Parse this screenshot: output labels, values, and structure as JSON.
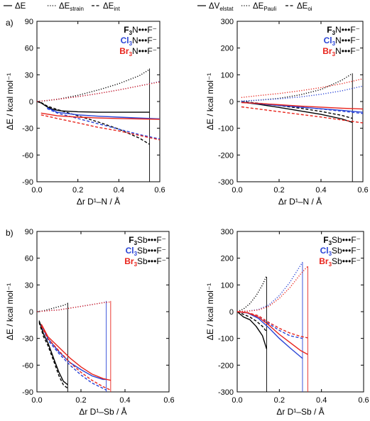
{
  "legend_rows": [
    {
      "items": [
        {
          "symbol": "ΔE",
          "sub": "",
          "dash": "solid"
        },
        {
          "symbol": "ΔE",
          "sub": "strain",
          "dash": "dotted"
        },
        {
          "symbol": "ΔE",
          "sub": "int",
          "dash": "dashed"
        }
      ]
    },
    {
      "items": [
        {
          "symbol": "ΔV",
          "sub": "elstat",
          "dash": "solid"
        },
        {
          "symbol": "ΔE",
          "sub": "Pauli",
          "dash": "dotted"
        },
        {
          "symbol": "ΔE",
          "sub": "oi",
          "dash": "dashed"
        }
      ]
    }
  ],
  "panel_labels": [
    "a)",
    "b)"
  ],
  "colors": {
    "F": "#000000",
    "Cl": "#2a45d6",
    "Br": "#e8231b",
    "axis": "#000000"
  },
  "chart_data": [
    {
      "type": "line",
      "ylabel": "ΔE / kcal mol⁻¹",
      "xlabel": "Δr D¹–N / Å",
      "xlim": [
        0,
        0.6
      ],
      "ylim": [
        -90,
        90
      ],
      "xticks": [
        "0.0",
        "0.2",
        "0.4",
        "0.6"
      ],
      "yticks": [
        "90",
        "60",
        "30",
        "0",
        "-30",
        "-60",
        "-90"
      ],
      "xtick_values": [
        0,
        0.2,
        0.4,
        0.6
      ],
      "ytick_values": [
        90,
        60,
        30,
        0,
        -30,
        -60,
        -90
      ],
      "legend": [
        {
          "prefix": "F",
          "sub": "3",
          "center": "N",
          "suffix": "•••F⁻",
          "color": "F"
        },
        {
          "prefix": "Cl",
          "sub": "3",
          "center": "N",
          "suffix": "•••F⁻",
          "color": "Cl"
        },
        {
          "prefix": "Br",
          "sub": "3",
          "center": "N",
          "suffix": "•••F⁻",
          "color": "Br"
        }
      ],
      "vlines": [
        {
          "x": 0.55,
          "color": "F",
          "y_from": -90,
          "y_to": 37
        }
      ],
      "series": [
        {
          "color": "F",
          "dash": "solid",
          "x": [
            0.0,
            0.02,
            0.05,
            0.08,
            0.12,
            0.2,
            0.3,
            0.4,
            0.5,
            0.55
          ],
          "y": [
            0,
            -1.5,
            -6,
            -9,
            -10.5,
            -11.5,
            -12,
            -12,
            -12,
            -12
          ]
        },
        {
          "color": "F",
          "dash": "dotted",
          "x": [
            0.0,
            0.05,
            0.1,
            0.2,
            0.3,
            0.4,
            0.5,
            0.55
          ],
          "y": [
            0,
            1,
            2.5,
            7,
            13,
            20,
            29,
            36
          ]
        },
        {
          "color": "F",
          "dash": "dashed",
          "x": [
            0.02,
            0.05,
            0.1,
            0.2,
            0.3,
            0.4,
            0.5,
            0.55
          ],
          "y": [
            -1,
            -5,
            -9,
            -16,
            -23,
            -31,
            -41,
            -48
          ]
        },
        {
          "color": "Cl",
          "dash": "solid",
          "x": [
            0.05,
            0.1,
            0.2,
            0.3,
            0.4,
            0.5,
            0.6
          ],
          "y": [
            -7,
            -12,
            -15,
            -16.5,
            -17.5,
            -18.5,
            -19.5
          ]
        },
        {
          "color": "Cl",
          "dash": "dotted",
          "x": [
            0.0,
            0.1,
            0.2,
            0.3,
            0.4,
            0.5,
            0.6
          ],
          "y": [
            0,
            2.5,
            5.5,
            9,
            13,
            17.5,
            22.5
          ]
        },
        {
          "color": "Cl",
          "dash": "dashed",
          "x": [
            0.05,
            0.1,
            0.2,
            0.3,
            0.4,
            0.5,
            0.6
          ],
          "y": [
            -8,
            -13,
            -19,
            -25,
            -31,
            -37,
            -42
          ]
        },
        {
          "color": "Br",
          "dash": "solid",
          "x": [
            0.02,
            0.1,
            0.2,
            0.3,
            0.4,
            0.5,
            0.6
          ],
          "y": [
            -13,
            -16,
            -17.5,
            -18.5,
            -19,
            -19.5,
            -20
          ]
        },
        {
          "color": "Br",
          "dash": "dotted",
          "x": [
            0.0,
            0.1,
            0.2,
            0.3,
            0.4,
            0.5,
            0.6
          ],
          "y": [
            0,
            2.5,
            5.5,
            9,
            13,
            17.5,
            22
          ]
        },
        {
          "color": "Br",
          "dash": "dashed",
          "x": [
            0.02,
            0.1,
            0.2,
            0.3,
            0.4,
            0.5,
            0.6
          ],
          "y": [
            -15,
            -19,
            -24,
            -29,
            -33,
            -38,
            -43
          ]
        }
      ]
    },
    {
      "type": "line",
      "ylabel": "ΔE / kcal mol⁻¹",
      "xlabel": "Δr D¹–N / Å",
      "xlim": [
        0,
        0.6
      ],
      "ylim": [
        -300,
        300
      ],
      "xticks": [
        "0.0",
        "0.2",
        "0.4",
        "0.6"
      ],
      "yticks": [
        "300",
        "200",
        "100",
        "0",
        "-100",
        "-200",
        "-300"
      ],
      "xtick_values": [
        0,
        0.2,
        0.4,
        0.6
      ],
      "ytick_values": [
        300,
        200,
        100,
        0,
        -100,
        -200,
        -300
      ],
      "legend": [
        {
          "prefix": "F",
          "sub": "3",
          "center": "N",
          "suffix": "•••F⁻",
          "color": "F"
        },
        {
          "prefix": "Cl",
          "sub": "3",
          "center": "N",
          "suffix": "•••F⁻",
          "color": "Cl"
        },
        {
          "prefix": "Br",
          "sub": "3",
          "center": "N",
          "suffix": "•••F⁻",
          "color": "Br"
        }
      ],
      "vlines": [
        {
          "x": 0.55,
          "color": "F",
          "y_from": -300,
          "y_to": 105
        }
      ],
      "series": [
        {
          "color": "F",
          "dash": "solid",
          "x": [
            0.02,
            0.1,
            0.2,
            0.3,
            0.4,
            0.5,
            0.55
          ],
          "y": [
            -2,
            -10,
            -22,
            -35,
            -48,
            -65,
            -78
          ]
        },
        {
          "color": "F",
          "dash": "dotted",
          "x": [
            0.02,
            0.1,
            0.2,
            0.3,
            0.4,
            0.5,
            0.55
          ],
          "y": [
            0,
            5,
            12,
            25,
            45,
            80,
            105
          ]
        },
        {
          "color": "F",
          "dash": "dashed",
          "x": [
            0.02,
            0.1,
            0.2,
            0.3,
            0.4,
            0.5,
            0.55
          ],
          "y": [
            0,
            -6,
            -15,
            -25,
            -37,
            -52,
            -63
          ]
        },
        {
          "color": "Cl",
          "dash": "solid",
          "x": [
            0.02,
            0.1,
            0.2,
            0.3,
            0.4,
            0.5,
            0.6
          ],
          "y": [
            -3,
            -8,
            -15,
            -21,
            -27,
            -33,
            -40
          ]
        },
        {
          "color": "Cl",
          "dash": "dotted",
          "x": [
            0.02,
            0.1,
            0.2,
            0.3,
            0.4,
            0.5,
            0.6
          ],
          "y": [
            2,
            5,
            10,
            17,
            27,
            40,
            58
          ]
        },
        {
          "color": "Cl",
          "dash": "dashed",
          "x": [
            0.02,
            0.1,
            0.2,
            0.3,
            0.4,
            0.5,
            0.6
          ],
          "y": [
            -2,
            -7,
            -13,
            -20,
            -28,
            -36,
            -45
          ]
        },
        {
          "color": "Br",
          "dash": "solid",
          "x": [
            0.02,
            0.1,
            0.2,
            0.3,
            0.4,
            0.5,
            0.6
          ],
          "y": [
            -4,
            -7,
            -12,
            -17,
            -21,
            -25,
            -28
          ]
        },
        {
          "color": "Br",
          "dash": "dotted",
          "x": [
            0.02,
            0.1,
            0.2,
            0.3,
            0.4,
            0.5,
            0.6
          ],
          "y": [
            15,
            22,
            30,
            40,
            52,
            67,
            85
          ]
        },
        {
          "color": "Br",
          "dash": "dashed",
          "x": [
            0.02,
            0.1,
            0.2,
            0.3,
            0.4,
            0.5,
            0.6
          ],
          "y": [
            -20,
            -28,
            -38,
            -48,
            -58,
            -69,
            -80
          ]
        }
      ]
    },
    {
      "type": "line",
      "ylabel": "ΔE / kcal mol⁻¹",
      "xlabel": "Δr D¹–Sb / Å",
      "xlim": [
        0,
        0.6
      ],
      "ylim": [
        -90,
        90
      ],
      "xticks": [
        "0.0",
        "0.2",
        "0.4",
        "0.6"
      ],
      "yticks": [
        "90",
        "60",
        "30",
        "0",
        "-30",
        "-60",
        "-90"
      ],
      "xtick_values": [
        0,
        0.2,
        0.4,
        0.6
      ],
      "ytick_values": [
        90,
        60,
        30,
        0,
        -30,
        -60,
        -90
      ],
      "legend": [
        {
          "prefix": "F",
          "sub": "3",
          "center": "Sb",
          "suffix": "•••F⁻",
          "color": "F"
        },
        {
          "prefix": "Cl",
          "sub": "3",
          "center": "Sb",
          "suffix": "•••F⁻",
          "color": "Cl"
        },
        {
          "prefix": "Br",
          "sub": "3",
          "center": "Sb",
          "suffix": "•••F⁻",
          "color": "Br"
        }
      ],
      "vlines": [
        {
          "x": 0.14,
          "color": "F",
          "y_from": -90,
          "y_to": 10
        },
        {
          "x": 0.315,
          "color": "Cl",
          "y_from": -90,
          "y_to": 12
        },
        {
          "x": 0.335,
          "color": "Br",
          "y_from": -90,
          "y_to": 12
        }
      ],
      "series": [
        {
          "color": "F",
          "dash": "solid",
          "x": [
            0.01,
            0.03,
            0.05,
            0.08,
            0.1,
            0.12,
            0.14
          ],
          "y": [
            -10,
            -25,
            -35,
            -55,
            -68,
            -78,
            -82
          ]
        },
        {
          "color": "F",
          "dash": "dotted",
          "x": [
            0.0,
            0.03,
            0.06,
            0.09,
            0.12,
            0.14
          ],
          "y": [
            0,
            1,
            3,
            5,
            7,
            9
          ]
        },
        {
          "color": "F",
          "dash": "dashed",
          "x": [
            0.01,
            0.03,
            0.05,
            0.08,
            0.1,
            0.12,
            0.14
          ],
          "y": [
            -12,
            -28,
            -38,
            -58,
            -72,
            -82,
            -86
          ]
        },
        {
          "color": "Cl",
          "dash": "solid",
          "x": [
            0.02,
            0.05,
            0.1,
            0.15,
            0.2,
            0.25,
            0.3,
            0.315
          ],
          "y": [
            -15,
            -30,
            -45,
            -57,
            -65,
            -72,
            -76,
            -76
          ]
        },
        {
          "color": "Cl",
          "dash": "dotted",
          "x": [
            0.0,
            0.05,
            0.1,
            0.15,
            0.2,
            0.25,
            0.3,
            0.315
          ],
          "y": [
            0,
            1,
            2,
            4,
            6,
            8,
            10,
            11
          ]
        },
        {
          "color": "Cl",
          "dash": "dashed",
          "x": [
            0.02,
            0.05,
            0.1,
            0.15,
            0.2,
            0.25,
            0.3,
            0.315
          ],
          "y": [
            -15,
            -32,
            -47,
            -60,
            -71,
            -80,
            -86,
            -88
          ]
        },
        {
          "color": "Br",
          "dash": "solid",
          "x": [
            0.02,
            0.05,
            0.1,
            0.15,
            0.2,
            0.25,
            0.3,
            0.335
          ],
          "y": [
            -14,
            -28,
            -40,
            -52,
            -62,
            -70,
            -75,
            -77
          ]
        },
        {
          "color": "Br",
          "dash": "dotted",
          "x": [
            0.0,
            0.05,
            0.1,
            0.15,
            0.2,
            0.25,
            0.3,
            0.335
          ],
          "y": [
            0,
            1,
            2,
            4,
            6,
            8,
            10,
            11
          ]
        },
        {
          "color": "Br",
          "dash": "dashed",
          "x": [
            0.02,
            0.05,
            0.1,
            0.15,
            0.2,
            0.25,
            0.3,
            0.335
          ],
          "y": [
            -16,
            -30,
            -44,
            -57,
            -68,
            -77,
            -84,
            -88
          ]
        }
      ]
    },
    {
      "type": "line",
      "ylabel": "ΔE / kcal mol⁻¹",
      "xlabel": "Δr D¹–Sb / Å",
      "xlim": [
        0,
        0.6
      ],
      "ylim": [
        -300,
        300
      ],
      "xticks": [
        "0.0",
        "0.2",
        "0.4",
        "0.6"
      ],
      "yticks": [
        "300",
        "200",
        "100",
        "0",
        "-100",
        "-200",
        "-300"
      ],
      "xtick_values": [
        0,
        0.2,
        0.4,
        0.6
      ],
      "ytick_values": [
        300,
        200,
        100,
        0,
        -100,
        -200,
        -300
      ],
      "legend": [
        {
          "prefix": "F",
          "sub": "3",
          "center": "Sb",
          "suffix": "•••F⁻",
          "color": "F"
        },
        {
          "prefix": "Cl",
          "sub": "3",
          "center": "Sb",
          "suffix": "•••F⁻",
          "color": "Cl"
        },
        {
          "prefix": "Br",
          "sub": "3",
          "center": "Sb",
          "suffix": "•••F⁻",
          "color": "Br"
        }
      ],
      "vlines": [
        {
          "x": 0.14,
          "color": "F",
          "y_from": -300,
          "y_to": 130
        },
        {
          "x": 0.31,
          "color": "Cl",
          "y_from": -300,
          "y_to": 185
        },
        {
          "x": 0.335,
          "color": "Br",
          "y_from": -300,
          "y_to": 170
        }
      ],
      "series": [
        {
          "color": "F",
          "dash": "solid",
          "x": [
            0.0,
            0.03,
            0.06,
            0.09,
            0.12,
            0.14
          ],
          "y": [
            0,
            -20,
            -30,
            -55,
            -90,
            -140
          ]
        },
        {
          "color": "F",
          "dash": "dotted",
          "x": [
            0.0,
            0.03,
            0.06,
            0.09,
            0.12,
            0.14
          ],
          "y": [
            0,
            10,
            30,
            60,
            100,
            135
          ]
        },
        {
          "color": "F",
          "dash": "dashed",
          "x": [
            0.0,
            0.03,
            0.06,
            0.09,
            0.12,
            0.14
          ],
          "y": [
            0,
            -10,
            -20,
            -35,
            -55,
            -75
          ]
        },
        {
          "color": "Cl",
          "dash": "solid",
          "x": [
            0.0,
            0.05,
            0.1,
            0.15,
            0.2,
            0.25,
            0.31
          ],
          "y": [
            0,
            -5,
            -25,
            -60,
            -100,
            -135,
            -175
          ]
        },
        {
          "color": "Cl",
          "dash": "dotted",
          "x": [
            0.0,
            0.05,
            0.1,
            0.15,
            0.2,
            0.25,
            0.31
          ],
          "y": [
            0,
            2,
            8,
            25,
            60,
            110,
            185
          ]
        },
        {
          "color": "Cl",
          "dash": "dashed",
          "x": [
            0.0,
            0.05,
            0.1,
            0.15,
            0.2,
            0.25,
            0.31
          ],
          "y": [
            0,
            -5,
            -20,
            -45,
            -70,
            -90,
            -100
          ]
        },
        {
          "color": "Br",
          "dash": "solid",
          "x": [
            0.0,
            0.05,
            0.1,
            0.15,
            0.2,
            0.25,
            0.3,
            0.335
          ],
          "y": [
            0,
            -4,
            -20,
            -50,
            -85,
            -115,
            -145,
            -160
          ]
        },
        {
          "color": "Br",
          "dash": "dotted",
          "x": [
            0.0,
            0.05,
            0.1,
            0.15,
            0.2,
            0.25,
            0.3,
            0.335
          ],
          "y": [
            0,
            2,
            6,
            20,
            50,
            90,
            140,
            170
          ]
        },
        {
          "color": "Br",
          "dash": "dashed",
          "x": [
            0.0,
            0.05,
            0.1,
            0.15,
            0.2,
            0.25,
            0.3,
            0.335
          ],
          "y": [
            0,
            -4,
            -15,
            -40,
            -62,
            -80,
            -92,
            -98
          ]
        }
      ]
    }
  ]
}
